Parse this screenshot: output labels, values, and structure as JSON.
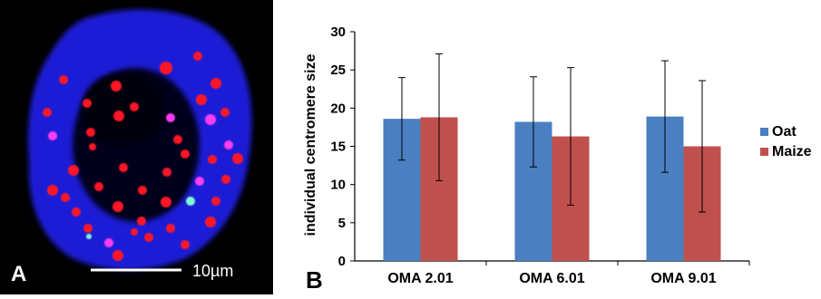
{
  "panel_a": {
    "label": "A",
    "scale_bar_text": "10µm",
    "colors": {
      "nucleus": "#1a1fd6",
      "centromere": "#ff1428",
      "overlap": "#ff3df0",
      "highlight": "#7fffd4"
    }
  },
  "panel_b": {
    "label": "B"
  },
  "chart_data": {
    "type": "bar",
    "title": "",
    "xlabel": "",
    "ylabel": "individual centromere size",
    "ylim": [
      0,
      30
    ],
    "yticks": [
      "0",
      "5",
      "10",
      "15",
      "20",
      "25",
      "30"
    ],
    "categories": [
      "OMA 2.01",
      "OMA 6.01",
      "OMA 9.01"
    ],
    "series": [
      {
        "name": "Oat",
        "color": "#4a7fc1",
        "values": [
          18.6,
          18.2,
          18.9
        ],
        "error": [
          5.4,
          5.9,
          7.3
        ]
      },
      {
        "name": "Maize",
        "color": "#c0504d",
        "values": [
          18.8,
          16.3,
          15.0
        ],
        "error": [
          8.3,
          9.0,
          8.6
        ]
      }
    ],
    "grid": false,
    "legend_position": "right"
  }
}
